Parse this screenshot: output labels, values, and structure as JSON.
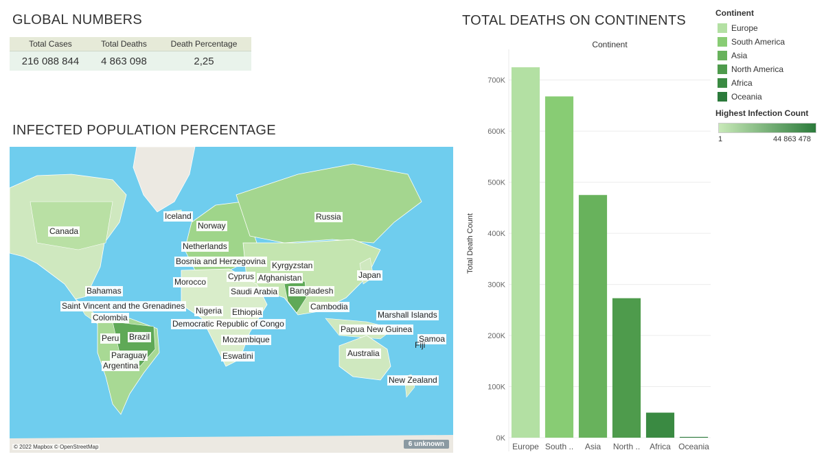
{
  "global_numbers": {
    "title": "GLOBAL NUMBERS",
    "headers": [
      "Total Cases",
      "Total Deaths",
      "Death Percentage"
    ],
    "values": [
      "216 088 844",
      "4 863 098",
      "2,25"
    ]
  },
  "map_section": {
    "title": "INFECTED POPULATION PERCENTAGE",
    "credit": "© 2022 Mapbox © OpenStreetMap",
    "unknown_badge": "6 unknown",
    "labels": [
      "Iceland",
      "Norway",
      "Netherlands",
      "Bosnia and Herzegovina",
      "Kyrgyzstan",
      "Cyprus",
      "Afghanistan",
      "Saudi Arabia",
      "Bangladesh",
      "Morocco",
      "Canada",
      "Russia",
      "Bahamas",
      "Saint Vincent and the Grenadines",
      "Colombia",
      "Peru",
      "Brazil",
      "Paraguay",
      "Argentina",
      "Nigeria",
      "Ethiopia",
      "Democratic Republic of Congo",
      "Mozambique",
      "Eswatini",
      "Japan",
      "Cambodia",
      "Marshall Islands",
      "Papua New Guinea",
      "Samoa",
      "Fiji",
      "Australia",
      "New Zealand"
    ]
  },
  "chart_section": {
    "title": "TOTAL DEATHS ON CONTINENTS"
  },
  "chart_data": {
    "type": "bar",
    "title": "Continent",
    "xlabel": "",
    "ylabel": "Total Death Count",
    "categories": [
      "Europe",
      "South America",
      "Asia",
      "North America",
      "Africa",
      "Oceania"
    ],
    "category_labels": [
      "Europe",
      "South ..",
      "Asia",
      "North ..",
      "Africa",
      "Oceania"
    ],
    "values": [
      725000,
      668000,
      475000,
      273000,
      49000,
      1500
    ],
    "colors": [
      "#b3e0a3",
      "#88cc74",
      "#68b25c",
      "#4e9b4c",
      "#3a8a42",
      "#2b7a3b"
    ],
    "ylim": [
      0,
      760000
    ],
    "yticks": [
      0,
      100000,
      200000,
      300000,
      400000,
      500000,
      600000,
      700000
    ],
    "ytick_labels": [
      "0K",
      "100K",
      "200K",
      "300K",
      "400K",
      "500K",
      "600K",
      "700K"
    ],
    "grid": true
  },
  "legend": {
    "continent_title": "Continent",
    "items": [
      {
        "label": "Europe",
        "color": "#b3e0a3"
      },
      {
        "label": "South America",
        "color": "#88cc74"
      },
      {
        "label": "Asia",
        "color": "#68b25c"
      },
      {
        "label": "North America",
        "color": "#4e9b4c"
      },
      {
        "label": "Africa",
        "color": "#3a8a42"
      },
      {
        "label": "Oceania",
        "color": "#2b7a3b"
      }
    ],
    "infection_title": "Highest Infection Count",
    "infection_min": "1",
    "infection_max": "44 863 478"
  }
}
